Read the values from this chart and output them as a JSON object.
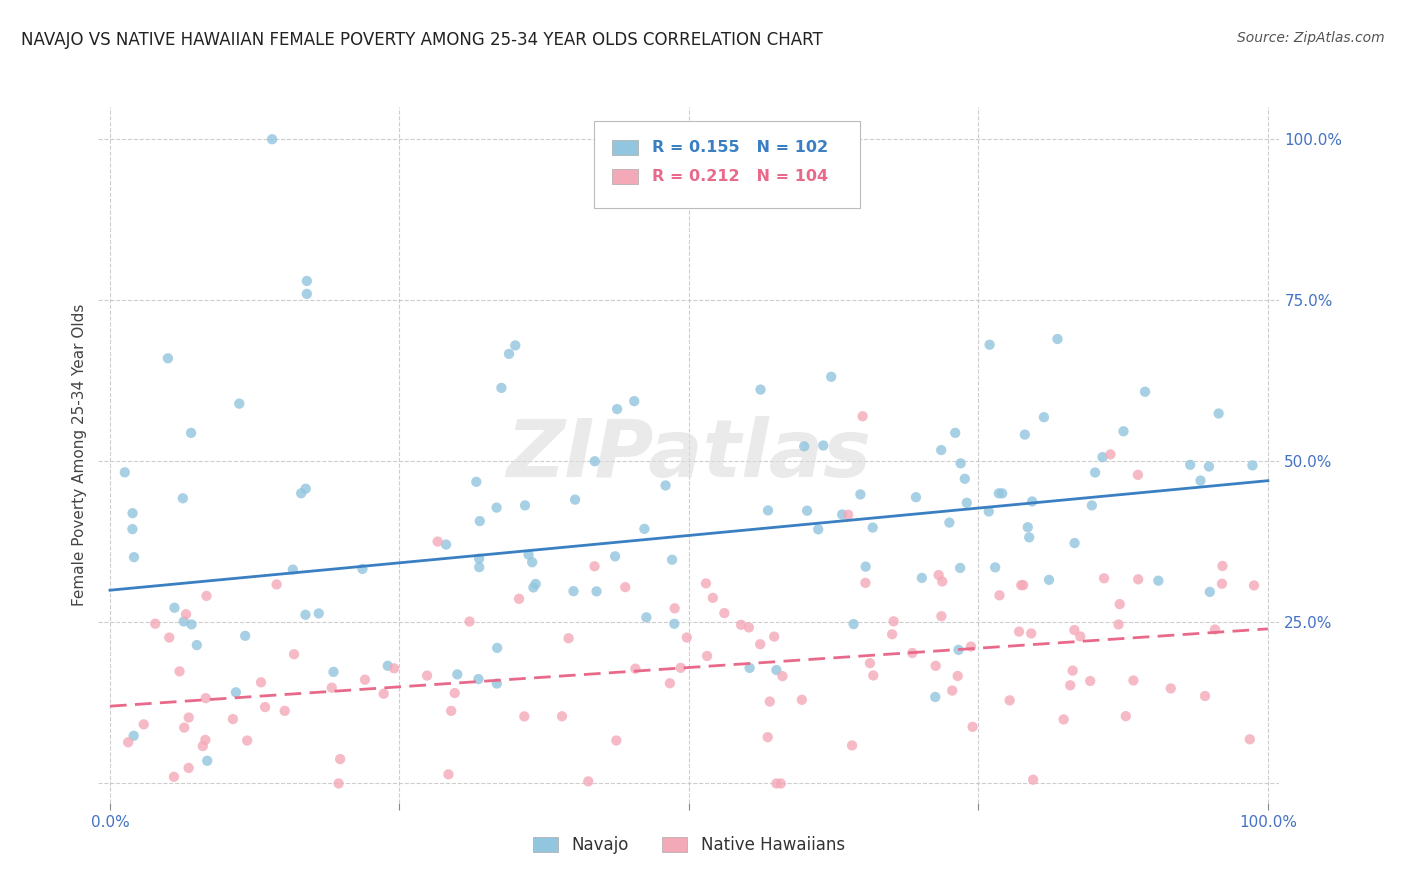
{
  "title": "NAVAJO VS NATIVE HAWAIIAN FEMALE POVERTY AMONG 25-34 YEAR OLDS CORRELATION CHART",
  "source": "Source: ZipAtlas.com",
  "ylabel": "Female Poverty Among 25-34 Year Olds",
  "navajo_R": 0.155,
  "navajo_N": 102,
  "hawaiian_R": 0.212,
  "hawaiian_N": 104,
  "navajo_color": "#92c5de",
  "hawaiian_color": "#f4a9b8",
  "navajo_line_color": "#3a7fc1",
  "hawaiian_line_color": "#e8698a",
  "navajo_line_style": "solid",
  "hawaiian_line_style": "dashed",
  "legend_navajo": "Navajo",
  "legend_hawaiian": "Native Hawaiians",
  "watermark_text": "ZIPatlas",
  "title_fontsize": 12,
  "source_fontsize": 10,
  "tick_color": "#4472c4",
  "tick_fontsize": 11,
  "grid_color": "#c8c8c8",
  "scatter_size": 55,
  "scatter_alpha": 0.8,
  "line_width": 2.0,
  "navajo_intercept": 0.3,
  "navajo_slope": 0.17,
  "hawaiian_intercept": 0.12,
  "hawaiian_slope": 0.12
}
